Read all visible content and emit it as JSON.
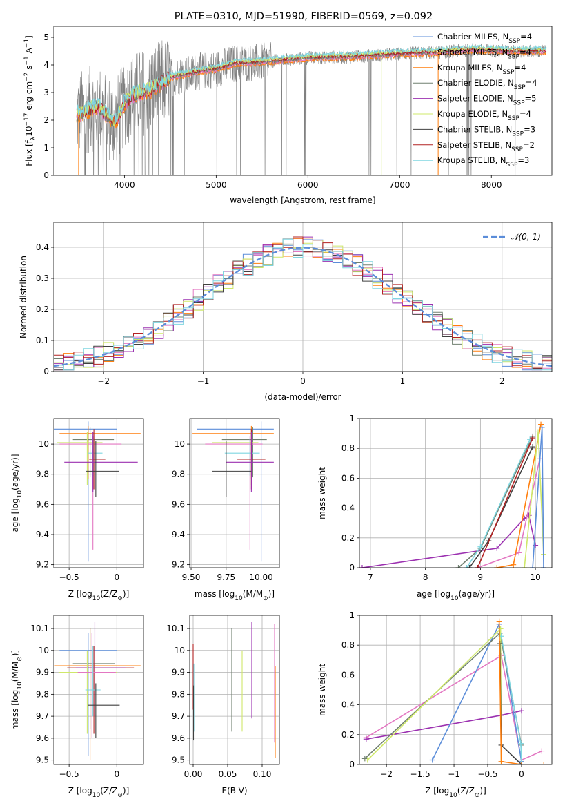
{
  "colors": {
    "Chabrier MILES": "#5b8dd9",
    "Salpeter MILES": "#e377c2",
    "Kroupa MILES": "#ff7f0e",
    "Chabrier ELODIE": "#708070",
    "Salpeter ELODIE": "#9b30b0",
    "Kroupa ELODIE": "#cfe86a",
    "Chabrier STELIB": "#404040",
    "Salpeter STELIB": "#b22222",
    "Kroupa STELIB": "#7fd6e0",
    "normal_curve": "#5b8dd9",
    "spectrum_data": "#808080"
  },
  "chart_data": [
    {
      "id": "spectrum",
      "type": "line",
      "title": "PLATE=0310, MJD=51990, FIBERID=0569, z=0.092",
      "xlabel": "wavelength [Angstrom, rest frame]",
      "ylabel_parts": [
        "Flux [f",
        "λ",
        "10",
        "−17",
        " erg cm",
        "−2",
        " s",
        "−1",
        " A",
        "−1",
        "]"
      ],
      "xlim": [
        3230,
        8660
      ],
      "ylim": [
        0,
        5.4
      ],
      "xticks": [
        4000,
        5000,
        6000,
        7000,
        8000
      ],
      "yticks": [
        0,
        1,
        2,
        3,
        4,
        5
      ],
      "legend_position": "upper right",
      "legend": [
        {
          "pre": "Chabrier MILES, N",
          "sub": "SSP",
          "post": "=4"
        },
        {
          "pre": "Salpeter MILES, N",
          "sub": "SSP",
          "post": "=4"
        },
        {
          "pre": "Kroupa MILES, N",
          "sub": "SSP",
          "post": "=4"
        },
        {
          "pre": "Chabrier ELODIE, N",
          "sub": "SSP",
          "post": "=4"
        },
        {
          "pre": "Salpeter ELODIE, N",
          "sub": "SSP",
          "post": "=5"
        },
        {
          "pre": "Kroupa ELODIE, N",
          "sub": "SSP",
          "post": "=4"
        },
        {
          "pre": "Chabrier STELIB, N",
          "sub": "SSP",
          "post": "=3"
        },
        {
          "pre": "Salpeter STELIB, N",
          "sub": "SSP",
          "post": "=2"
        },
        {
          "pre": "Kroupa STELIB, N",
          "sub": "SSP",
          "post": "=3"
        }
      ],
      "continuum": {
        "wavelength": [
          3500,
          3700,
          3900,
          4000,
          4100,
          4300,
          4500,
          4800,
          5000,
          5200,
          5500,
          6000,
          6500,
          7000,
          7400,
          7800,
          8200,
          8600
        ],
        "flux": [
          2.2,
          2.5,
          1.9,
          2.6,
          2.9,
          3.1,
          3.55,
          3.75,
          3.85,
          4.05,
          4.1,
          4.25,
          4.3,
          4.4,
          4.45,
          4.55,
          4.5,
          4.5
        ]
      }
    },
    {
      "id": "residuals",
      "type": "histogram",
      "xlabel": "(data-model)/error",
      "ylabel": "Normed distribution",
      "xlim": [
        -2.5,
        2.5
      ],
      "ylim": [
        0,
        0.48
      ],
      "xticks": [
        -2,
        -1,
        0,
        1,
        2
      ],
      "yticks": [
        0.0,
        0.1,
        0.2,
        0.3,
        0.4
      ],
      "grid": true,
      "legend_position": "upper right",
      "legend_label": "𝒩(0, 1)",
      "bin_width": 0.1
    },
    {
      "id": "age-vs-Z",
      "type": "scatter",
      "xlabel": "Z [log",
      "xlabel_sub": "10",
      "xlabel_post": "(Z/Z",
      "xlabel_end": ")]",
      "ylabel": "age  [log",
      "ylabel_sub": "10",
      "ylabel_post": "(age/yr)]",
      "xlim": [
        -0.66,
        0.28
      ],
      "ylim": [
        9.18,
        10.17
      ],
      "xticks": [
        -0.5,
        0.0
      ],
      "yticks": [
        9.2,
        9.4,
        9.6,
        9.8,
        10.0
      ],
      "grid": true,
      "points": [
        {
          "model": "Chabrier MILES",
          "x": -0.3,
          "y": 10.1,
          "xerr": [
            0.4,
            0.3
          ],
          "yerr": [
            0.88,
            0.05
          ]
        },
        {
          "model": "Kroupa MILES",
          "x": -0.3,
          "y": 10.07,
          "xerr": [
            0.3,
            0.55
          ],
          "yerr": [
            0.3,
            0.05
          ]
        },
        {
          "model": "Chabrier ELODIE",
          "x": -0.28,
          "y": 10.03,
          "xerr": [
            0.18,
            0.25
          ],
          "yerr": [
            0.25,
            0.08
          ]
        },
        {
          "model": "Salpeter MILES",
          "x": -0.25,
          "y": 10.0,
          "xerr": [
            0.35,
            0.3
          ],
          "yerr": [
            0.7,
            0.05
          ]
        },
        {
          "model": "Kroupa ELODIE",
          "x": -0.31,
          "y": 10.01,
          "xerr": [
            0.32,
            0.16
          ],
          "yerr": [
            0.28,
            0.07
          ]
        },
        {
          "model": "Kroupa STELIB",
          "x": -0.25,
          "y": 9.94,
          "xerr": [
            0.05,
            0.1
          ],
          "yerr": [
            0.15,
            0.1
          ]
        },
        {
          "model": "Salpeter STELIB",
          "x": -0.24,
          "y": 9.9,
          "xerr": [
            0.05,
            0.12
          ],
          "yerr": [
            0.2,
            0.2
          ]
        },
        {
          "model": "Salpeter ELODIE",
          "x": -0.25,
          "y": 9.88,
          "xerr": [
            0.3,
            0.47
          ],
          "yerr": [
            0.2,
            0.2
          ]
        },
        {
          "model": "Chabrier STELIB",
          "x": -0.22,
          "y": 9.82,
          "xerr": [
            0.1,
            0.24
          ],
          "yerr": [
            0.17,
            0.2
          ]
        }
      ]
    },
    {
      "id": "age-vs-mass",
      "type": "scatter",
      "xlabel": "mass [log",
      "xlabel_sub": "10",
      "xlabel_post": "(M/M",
      "xlabel_end": ")]",
      "xlim": [
        9.49,
        10.13
      ],
      "ylim": [
        9.18,
        10.17
      ],
      "xticks": [
        9.5,
        9.75,
        10.0
      ],
      "xtick_labels": [
        "9.50",
        "9.75",
        "10.00"
      ],
      "yticks": [
        9.2,
        9.4,
        9.6,
        9.8,
        10.0
      ],
      "grid": true,
      "points": [
        {
          "model": "Chabrier MILES",
          "x": 10.0,
          "y": 10.1,
          "xerr": [
            0.46,
            0.09
          ],
          "yerr": [
            0.88,
            0.05
          ]
        },
        {
          "model": "Kroupa MILES",
          "x": 9.93,
          "y": 10.07,
          "xerr": [
            0.42,
            0.16
          ],
          "yerr": [
            0.3,
            0.05
          ]
        },
        {
          "model": "Chabrier ELODIE",
          "x": 9.94,
          "y": 10.03,
          "xerr": [
            0.22,
            0.1
          ],
          "yerr": [
            0.25,
            0.08
          ]
        },
        {
          "model": "Salpeter MILES",
          "x": 9.92,
          "y": 10.0,
          "xerr": [
            0.32,
            0.09
          ],
          "yerr": [
            0.7,
            0.05
          ]
        },
        {
          "model": "Kroupa ELODIE",
          "x": 9.93,
          "y": 10.01,
          "xerr": [
            0.28,
            0.05
          ],
          "yerr": [
            0.28,
            0.07
          ]
        },
        {
          "model": "Kroupa STELIB",
          "x": 9.92,
          "y": 9.94,
          "xerr": [
            0.18,
            0.07
          ],
          "yerr": [
            0.15,
            0.1
          ]
        },
        {
          "model": "Salpeter STELIB",
          "x": 9.93,
          "y": 9.9,
          "xerr": [
            0.1,
            0.1
          ],
          "yerr": [
            0.2,
            0.2
          ]
        },
        {
          "model": "Salpeter ELODIE",
          "x": 9.93,
          "y": 9.88,
          "xerr": [
            0.18,
            0.16
          ],
          "yerr": [
            0.2,
            0.2
          ]
        },
        {
          "model": "Chabrier STELIB",
          "x": 9.75,
          "y": 9.82,
          "xerr": [
            0.1,
            0.18
          ],
          "yerr": [
            0.17,
            0.2
          ]
        }
      ]
    },
    {
      "id": "massweight-vs-age",
      "type": "line",
      "xlabel": "age  [log",
      "xlabel_sub": "10",
      "xlabel_post": "(age/yr)]",
      "ylabel": "mass weight",
      "xlim": [
        6.8,
        10.3
      ],
      "ylim": [
        0,
        1.0
      ],
      "xticks": [
        7,
        8,
        9,
        10
      ],
      "yticks": [
        0.0,
        0.2,
        0.4,
        0.6,
        0.8,
        1.0
      ],
      "grid": true,
      "series": [
        {
          "model": "Salpeter ELODIE",
          "x": [
            6.85,
            9.3,
            9.8,
            9.88,
            10.0
          ],
          "y": [
            0.0,
            0.13,
            0.33,
            0.35,
            0.15
          ]
        },
        {
          "model": "Salpeter MILES",
          "x": [
            8.95,
            9.7,
            10.08
          ],
          "y": [
            0.0,
            0.1,
            0.73
          ]
        },
        {
          "model": "Kroupa MILES",
          "x": [
            9.3,
            9.6,
            10.1
          ],
          "y": [
            0.0,
            0.02,
            0.96
          ]
        },
        {
          "model": "Chabrier ELODIE",
          "x": [
            8.6,
            9.0,
            9.95
          ],
          "y": [
            0.0,
            0.13,
            0.88
          ]
        },
        {
          "model": "Kroupa STELIB",
          "x": [
            8.75,
            9.0,
            9.9
          ],
          "y": [
            0.0,
            0.14,
            0.86
          ]
        },
        {
          "model": "Chabrier STELIB",
          "x": [
            8.8,
            9.15,
            9.95
          ],
          "y": [
            0.0,
            0.18,
            0.81
          ]
        },
        {
          "model": "Salpeter STELIB",
          "x": [
            8.95,
            9.95
          ],
          "y": [
            0.0,
            0.87
          ]
        },
        {
          "model": "Kroupa ELODIE",
          "x": [
            9.8,
            10.05,
            10.15
          ],
          "y": [
            0.0,
            0.91,
            0.09
          ]
        },
        {
          "model": "Chabrier MILES",
          "x": [
            9.95,
            10.12,
            10.15
          ],
          "y": [
            0.0,
            0.94,
            0.0
          ]
        }
      ]
    },
    {
      "id": "mass-vs-Z",
      "type": "scatter",
      "xlabel": "Z [log",
      "xlabel_sub": "10",
      "xlabel_post": "(Z/Z",
      "xlabel_end": ")]",
      "ylabel": "mass [log",
      "ylabel_sub": "10",
      "ylabel_post": "(M/M",
      "ylabel_end": ")]",
      "xlim": [
        -0.66,
        0.28
      ],
      "ylim": [
        9.48,
        10.16
      ],
      "xticks": [
        -0.5,
        0.0
      ],
      "yticks": [
        9.5,
        9.6,
        9.7,
        9.8,
        9.9,
        10.0,
        10.1
      ],
      "grid": true,
      "points": [
        {
          "model": "Chabrier MILES",
          "x": -0.3,
          "y": 10.0,
          "xerr": [
            0.3,
            0.3
          ],
          "yerr": [
            0.48,
            0.08
          ]
        },
        {
          "model": "Chabrier ELODIE",
          "x": -0.28,
          "y": 9.94,
          "xerr": [
            0.18,
            0.26
          ],
          "yerr": [
            0.3,
            0.16
          ]
        },
        {
          "model": "Kroupa MILES",
          "x": -0.28,
          "y": 9.93,
          "xerr": [
            0.37,
            0.53
          ],
          "yerr": [
            0.43,
            0.17
          ]
        },
        {
          "model": "Salpeter STELIB",
          "x": -0.24,
          "y": 9.92,
          "xerr": [
            0.28,
            0.42
          ],
          "yerr": [
            0.3,
            0.1
          ]
        },
        {
          "model": "Salpeter ELODIE",
          "x": -0.23,
          "y": 9.92,
          "xerr": [
            0.2,
            0.32
          ],
          "yerr": [
            0.22,
            0.21
          ]
        },
        {
          "model": "Kroupa ELODIE",
          "x": -0.31,
          "y": 9.9,
          "xerr": [
            0.3,
            0.31
          ],
          "yerr": [
            0.28,
            0.1
          ]
        },
        {
          "model": "Salpeter MILES",
          "x": -0.26,
          "y": 9.9,
          "xerr": [
            0.15,
            0.25
          ],
          "yerr": [
            0.3,
            0.18
          ]
        },
        {
          "model": "Kroupa STELIB",
          "x": -0.25,
          "y": 9.82,
          "xerr": [
            0.08,
            0.08
          ],
          "yerr": [
            0.12,
            0.2
          ]
        },
        {
          "model": "Chabrier STELIB",
          "x": -0.22,
          "y": 9.75,
          "xerr": [
            0.08,
            0.25
          ],
          "yerr": [
            0.15,
            0.1
          ]
        }
      ]
    },
    {
      "id": "ebv",
      "type": "errorbar",
      "xlabel": "E(B-V)",
      "xlim": [
        -0.005,
        0.125
      ],
      "ylim": [
        9.48,
        10.16
      ],
      "xticks": [
        0.0,
        0.05,
        0.1
      ],
      "xtick_labels": [
        "0.00",
        "0.05",
        "0.10"
      ],
      "yticks": [
        9.5,
        9.6,
        9.7,
        9.8,
        9.9,
        10.0,
        10.1
      ],
      "grid": true,
      "points": [
        {
          "model": "Salpeter STELIB",
          "x": 0.0,
          "y": 9.93,
          "yerr": [
            0.2,
            0.1
          ]
        },
        {
          "model": "Kroupa STELIB",
          "x": 0.001,
          "y": 9.82,
          "yerr": [
            0.19,
            0.12
          ]
        },
        {
          "model": "Chabrier STELIB",
          "x": 0.0005,
          "y": 9.72,
          "yerr": [
            0.13,
            0.12
          ]
        },
        {
          "model": "Chabrier ELODIE",
          "x": 0.056,
          "y": 9.86,
          "yerr": [
            0.23,
            0.24
          ]
        },
        {
          "model": "Kroupa ELODIE",
          "x": 0.071,
          "y": 9.83,
          "yerr": [
            0.2,
            0.17
          ]
        },
        {
          "model": "Salpeter ELODIE",
          "x": 0.085,
          "y": 9.92,
          "yerr": [
            0.23,
            0.21
          ]
        },
        {
          "model": "Salpeter MILES",
          "x": 0.118,
          "y": 9.88,
          "yerr": [
            0.3,
            0.24
          ]
        },
        {
          "model": "Kroupa MILES",
          "x": 0.119,
          "y": 9.76,
          "yerr": [
            0.25,
            0.17
          ]
        }
      ]
    },
    {
      "id": "massweight-vs-Z",
      "type": "line",
      "xlabel": "Z [log",
      "xlabel_sub": "10",
      "xlabel_post": "(Z/Z",
      "xlabel_end": ")]",
      "ylabel": "mass weight",
      "xlim": [
        -2.4,
        0.45
      ],
      "ylim": [
        0,
        1.0
      ],
      "xticks": [
        -2.0,
        -1.5,
        -1.0,
        -0.5,
        0.0
      ],
      "yticks": [
        0.0,
        0.2,
        0.4,
        0.6,
        0.8,
        1.0
      ],
      "grid": true,
      "series": [
        {
          "model": "Salpeter MILES",
          "x": [
            -2.3,
            -0.3,
            0.0,
            0.3
          ],
          "y": [
            0.18,
            0.73,
            0.03,
            0.09
          ]
        },
        {
          "model": "Salpeter ELODIE",
          "x": [
            -2.3,
            -0.3,
            0.0
          ],
          "y": [
            0.17,
            0.33,
            0.36
          ]
        },
        {
          "model": "Chabrier MILES",
          "x": [
            -1.32,
            -0.33,
            0.0
          ],
          "y": [
            0.03,
            0.94,
            0.02
          ]
        },
        {
          "model": "Chabrier ELODIE",
          "x": [
            -2.32,
            -0.32,
            0.0
          ],
          "y": [
            0.04,
            0.88,
            0.13
          ]
        },
        {
          "model": "Kroupa ELODIE",
          "x": [
            -2.28,
            -0.31,
            -0.3
          ],
          "y": [
            0.03,
            0.91,
            0.0
          ]
        },
        {
          "model": "Kroupa STELIB",
          "x": [
            -0.3,
            -0.01,
            0.0
          ],
          "y": [
            0.86,
            0.14,
            0.0
          ]
        },
        {
          "model": "Chabrier STELIB",
          "x": [
            -0.32,
            -0.3,
            0.0
          ],
          "y": [
            0.81,
            0.13,
            0.0
          ]
        },
        {
          "model": "Kroupa MILES",
          "x": [
            -0.33,
            -0.3,
            0.0,
            0.33
          ],
          "y": [
            0.96,
            0.02,
            0.0,
            0.0
          ]
        }
      ]
    }
  ]
}
